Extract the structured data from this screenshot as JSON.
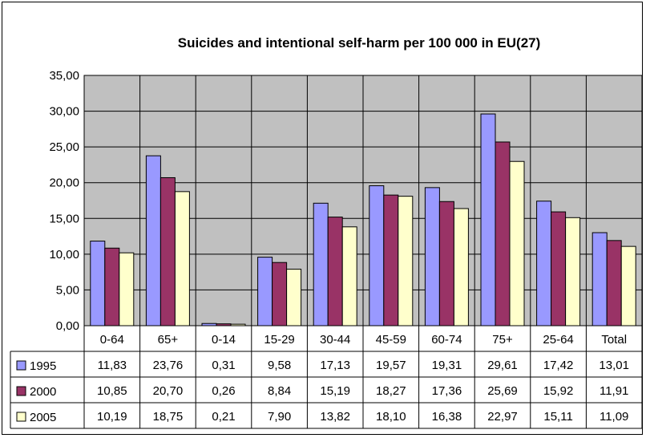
{
  "chart_data": {
    "type": "bar",
    "title": "Suicides and intentional self-harm per 100 000 in EU(27)",
    "xlabel": "",
    "ylabel": "",
    "ylim": [
      0,
      35
    ],
    "yticks": [
      "0,00",
      "5,00",
      "10,00",
      "15,00",
      "20,00",
      "25,00",
      "30,00",
      "35,00"
    ],
    "grid": true,
    "legend_placement": "data-table",
    "categories": [
      "0-64",
      "65+",
      "0-14",
      "15-29",
      "30-44",
      "45-59",
      "60-74",
      "75+",
      "25-64",
      "Total"
    ],
    "series": [
      {
        "name": "1995",
        "color": "#9999ff",
        "values": [
          11.83,
          23.76,
          0.31,
          9.58,
          17.13,
          19.57,
          19.31,
          29.61,
          17.42,
          13.01
        ],
        "labels": [
          "11,83",
          "23,76",
          "0,31",
          "9,58",
          "17,13",
          "19,57",
          "19,31",
          "29,61",
          "17,42",
          "13,01"
        ]
      },
      {
        "name": "2000",
        "color": "#993366",
        "values": [
          10.85,
          20.7,
          0.26,
          8.84,
          15.19,
          18.27,
          17.36,
          25.69,
          15.92,
          11.91
        ],
        "labels": [
          "10,85",
          "20,70",
          "0,26",
          "8,84",
          "15,19",
          "18,27",
          "17,36",
          "25,69",
          "15,92",
          "11,91"
        ]
      },
      {
        "name": "2005",
        "color": "#ffffcc",
        "values": [
          10.19,
          18.75,
          0.21,
          7.9,
          13.82,
          18.1,
          16.38,
          22.97,
          15.11,
          11.09
        ],
        "labels": [
          "10,19",
          "18,75",
          "0,21",
          "7,90",
          "13,82",
          "18,10",
          "16,38",
          "22,97",
          "15,11",
          "11,09"
        ]
      }
    ],
    "plot_background": "#c0c0c0"
  }
}
